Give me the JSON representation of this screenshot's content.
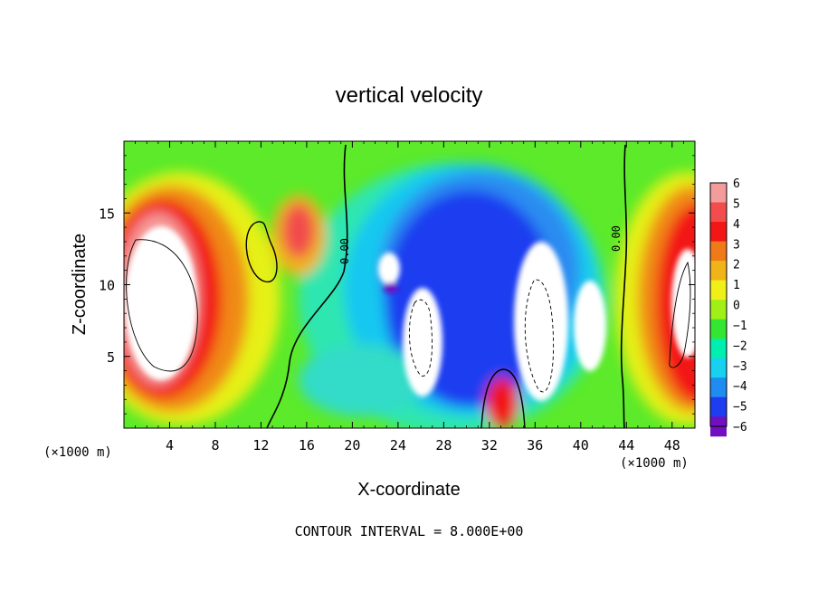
{
  "chart_data": {
    "type": "heatmap",
    "title": "vertical velocity",
    "xlabel": "X-coordinate",
    "ylabel": "Z-coordinate",
    "x_unit_left": "(×1000 m)",
    "x_unit_right": "(×1000 m)",
    "xlim": [
      0,
      50
    ],
    "ylim": [
      0,
      20
    ],
    "x_ticks": [
      "4",
      "8",
      "12",
      "16",
      "20",
      "24",
      "28",
      "32",
      "36",
      "40",
      "44",
      "48"
    ],
    "x_tick_values": [
      4,
      8,
      12,
      16,
      20,
      24,
      28,
      32,
      36,
      40,
      44,
      48
    ],
    "y_ticks": [
      "5",
      "10",
      "15"
    ],
    "y_tick_values": [
      5,
      10,
      15
    ],
    "colorbar": {
      "labels": [
        "6",
        "5",
        "4",
        "3",
        "2",
        "1",
        "0",
        "−1",
        "−2",
        "−3",
        "−4",
        "−5",
        "−6"
      ],
      "values": [
        6,
        5,
        4,
        3,
        2,
        1,
        0,
        -1,
        -2,
        -3,
        -4,
        -5,
        -6
      ],
      "colors_high_to_low": [
        "#f49c9c",
        "#f24c4c",
        "#f21616",
        "#f07a18",
        "#f0b418",
        "#f0f018",
        "#a0f018",
        "#32e632",
        "#00eeb0",
        "#18d0f0",
        "#1e8cf0",
        "#1e3cf0",
        "#7010c0"
      ],
      "range": [
        -6,
        6
      ]
    },
    "contour_labels": [
      {
        "text": "0.00",
        "x": 19.3,
        "z": 11.5
      },
      {
        "text": "0.00",
        "x": 44.3,
        "z": 14.3
      }
    ],
    "features": [
      {
        "kind": "updraft",
        "x": 3,
        "z": 9,
        "value": 8
      },
      {
        "kind": "updraft",
        "x": 48.5,
        "z": 8,
        "value": 8
      },
      {
        "kind": "updraft",
        "x": 15.3,
        "z": 13.5,
        "value": 5
      },
      {
        "kind": "updraft",
        "x": 33.7,
        "z": 1.8,
        "value": 4
      },
      {
        "kind": "downdraft",
        "x": 26.5,
        "z": 7,
        "value": -8
      },
      {
        "kind": "downdraft",
        "x": 37,
        "z": 8,
        "value": -8
      },
      {
        "kind": "downdraft",
        "x": 22.5,
        "z": 11,
        "value": -7
      },
      {
        "kind": "downdraft",
        "x": 40,
        "z": 7.5,
        "value": -7
      }
    ],
    "footer": "CONTOUR INTERVAL = 8.000E+00"
  }
}
